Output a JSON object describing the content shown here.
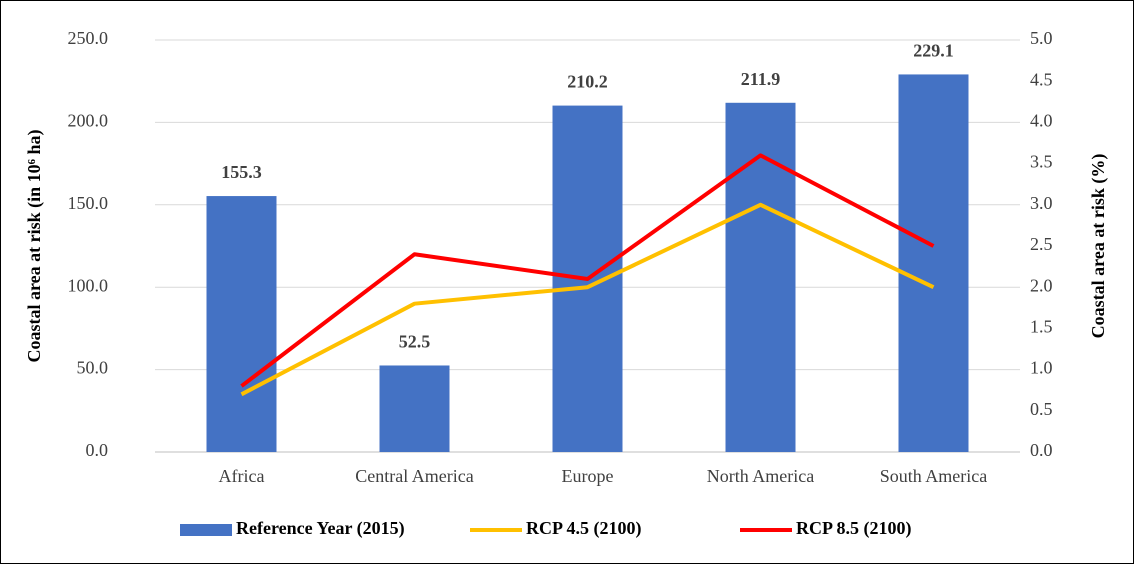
{
  "chart_data": {
    "type": "bar",
    "categories": [
      "Africa",
      "Central America",
      "Europe",
      "North America",
      "South America"
    ],
    "series": [
      {
        "name": "Reference Year (2015)",
        "type": "bar",
        "color": "#4472c4",
        "values": [
          155.3,
          52.5,
          210.2,
          211.9,
          229.1
        ]
      },
      {
        "name": "RCP 4.5 (2100)",
        "type": "line",
        "axis": "y2",
        "color": "#ffc000",
        "values": [
          0.7,
          1.8,
          2.0,
          3.0,
          2.0
        ]
      },
      {
        "name": "RCP 8.5 (2100)",
        "type": "line",
        "axis": "y2",
        "color": "#ff0000",
        "values": [
          0.8,
          2.4,
          2.1,
          3.6,
          2.5
        ]
      }
    ],
    "ylabel": "Coastal area at risk (in 10⁶ ha)",
    "y2label": "Coastal area at risk (%)",
    "ylim": [
      0,
      250
    ],
    "yticks": [
      {
        "value": 0,
        "label": "0.0"
      },
      {
        "value": 50,
        "label": "50.0"
      },
      {
        "value": 100,
        "label": "100.0"
      },
      {
        "value": 150,
        "label": "150.0"
      },
      {
        "value": 200,
        "label": "200.0"
      },
      {
        "value": 250,
        "label": "250.0"
      }
    ],
    "y2lim": [
      0,
      5
    ],
    "y2ticks": [
      {
        "value": 0,
        "label": "0.0"
      },
      0.5,
      {
        "value": 1,
        "label": "1.0"
      },
      1.5,
      {
        "value": 2,
        "label": "2.0"
      },
      2.5,
      {
        "value": 3,
        "label": "3.0"
      },
      3.5,
      {
        "value": 4,
        "label": "4.0"
      },
      4.5,
      {
        "value": 5,
        "label": "5.0"
      }
    ],
    "grid": true,
    "legend": "bottom"
  }
}
